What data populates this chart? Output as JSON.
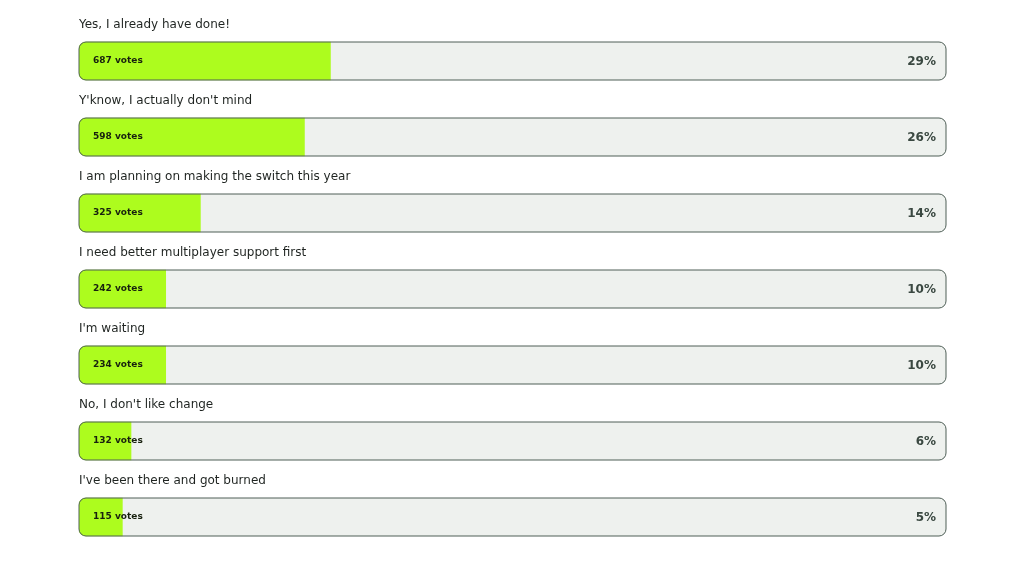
{
  "chart_data": {
    "type": "bar",
    "orientation": "horizontal",
    "categories": [
      "Yes, I already have done!",
      "Y'know, I actually don't mind",
      "I am planning on making the switch this year",
      "I need better multiplayer support first",
      "I'm waiting",
      "No, I don't like change",
      "I've been there and got burned"
    ],
    "values": [
      29,
      26,
      14,
      10,
      10,
      6,
      5
    ],
    "value_labels": [
      "29%",
      "26%",
      "14%",
      "10%",
      "10%",
      "6%",
      "5%"
    ],
    "color": "#adfc1e",
    "xlim": [
      0,
      100
    ],
    "tick_labels": "y",
    "annotations": [
      "687 votes",
      "598 votes",
      "325 votes",
      "242 votes",
      "234 votes",
      "132 votes",
      "115 votes"
    ]
  }
}
